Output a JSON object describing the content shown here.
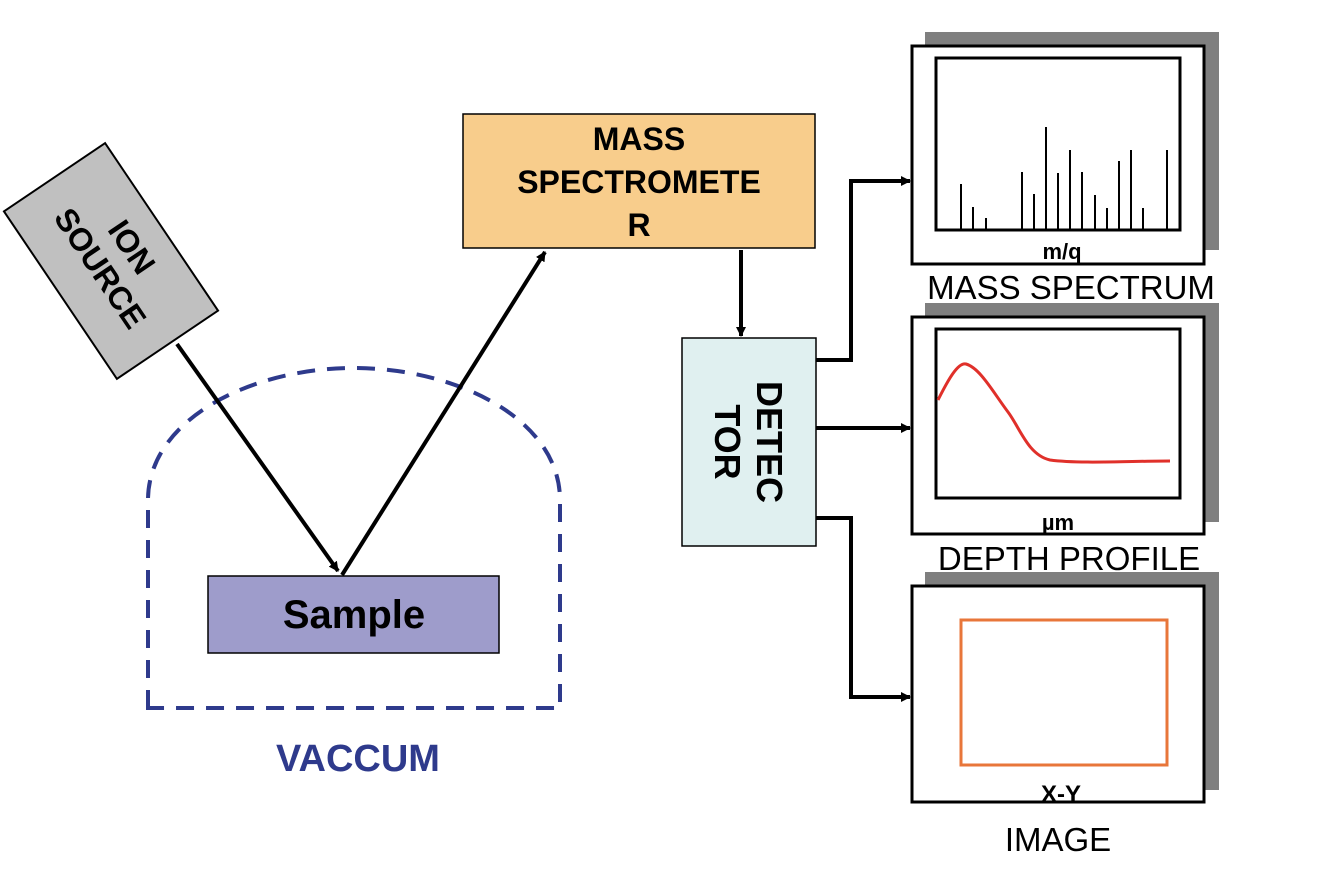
{
  "ion_source": {
    "line1": "ION",
    "line2": "SOURCE"
  },
  "mass_spectrometer": {
    "line1": "MASS",
    "line2": "SPECTROMETE",
    "line3": "R"
  },
  "detector": {
    "line1": "DETEC",
    "line2": "TOR"
  },
  "sample": {
    "label": "Sample"
  },
  "vacuum": {
    "label": "VACCUM"
  },
  "panels": {
    "mass_spectrum": {
      "axis_label": "m/q",
      "caption": "MASS SPECTRUM"
    },
    "depth_profile": {
      "axis_label": "µm",
      "caption": "DEPTH PROFILE"
    },
    "image": {
      "axis_label": "X-Y",
      "caption": "IMAGE"
    }
  },
  "colors": {
    "ion_source_fill": "#c0c0c0",
    "mass_spectrometer_fill": "#f8cd8c",
    "detector_fill": "#e0f0f0",
    "sample_fill": "#9e9ccb",
    "vacuum_stroke": "#2e3a8c",
    "depth_curve": "#e0302a",
    "image_frame": "#e8763a",
    "panel_shadow": "#7f7f7f"
  }
}
